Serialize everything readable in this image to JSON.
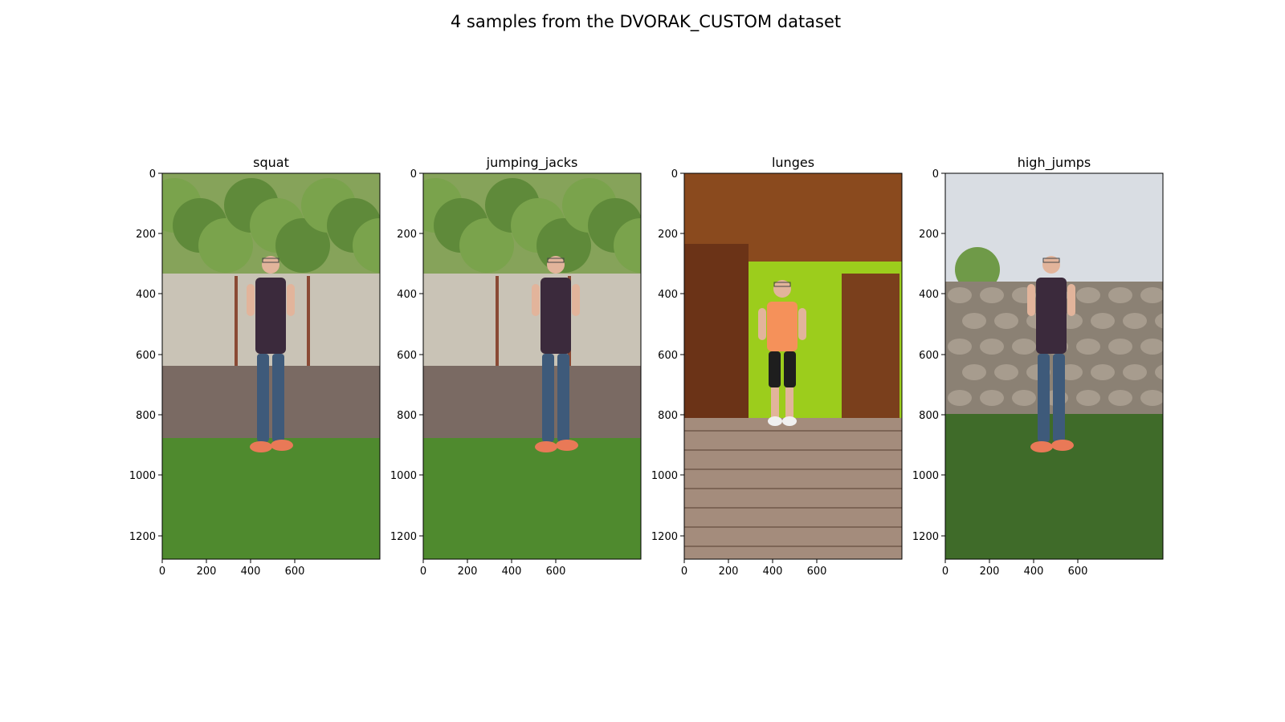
{
  "figure": {
    "title": "4 samples from the DVORAK_CUSTOM dataset"
  },
  "panels": [
    {
      "title": "squat",
      "scene": "outdoor-fence",
      "shirt": "#3b2a3c",
      "pants": "#3e5a7a",
      "x_ticks": [
        "0",
        "200",
        "400",
        "600"
      ],
      "y_ticks": [
        "0",
        "200",
        "400",
        "600",
        "800",
        "1000",
        "1200"
      ]
    },
    {
      "title": "jumping_jacks",
      "scene": "outdoor-fence",
      "shirt": "#3b2a3c",
      "pants": "#3e5a7a",
      "x_ticks": [
        "0",
        "200",
        "400",
        "600"
      ],
      "y_ticks": [
        "0",
        "200",
        "400",
        "600",
        "800",
        "1000",
        "1200"
      ]
    },
    {
      "title": "lunges",
      "scene": "indoor-room",
      "shirt": "#f5915a",
      "pants": "#1e1e1e",
      "x_ticks": [
        "0",
        "200",
        "400",
        "600"
      ],
      "y_ticks": [
        "0",
        "200",
        "400",
        "600",
        "800",
        "1000",
        "1200"
      ]
    },
    {
      "title": "high_jumps",
      "scene": "outdoor-stone-wall",
      "shirt": "#3b2a3c",
      "pants": "#3e5a7a",
      "x_ticks": [
        "0",
        "200",
        "400",
        "600"
      ],
      "y_ticks": [
        "0",
        "200",
        "400",
        "600",
        "800",
        "1000",
        "1200"
      ]
    }
  ]
}
